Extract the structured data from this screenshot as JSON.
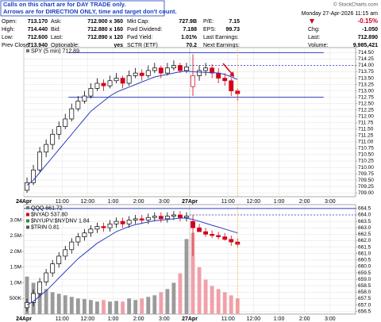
{
  "notice": [
    "Calls on this chart are for DAY TRADE only.",
    "Arrows are for DIRECTION ONLY, time and target don't count."
  ],
  "header": {
    "source": "© StockCharts.com",
    "timestamp": "Monday 27-Apr-2026 11:15 am"
  },
  "quote": {
    "columns": [
      [
        [
          "Open:",
          "713.170"
        ],
        [
          "High:",
          "714.440"
        ],
        [
          "Low:",
          "712.600"
        ],
        [
          "Prev Close:",
          "713.940"
        ]
      ],
      [
        [
          "Ask:",
          "712.900 x 360"
        ],
        [
          "Bid:",
          "712.880 x 160"
        ],
        [
          "Last:",
          "712.890 x 120"
        ],
        [
          "Optionable:",
          "yes"
        ]
      ],
      [
        [
          "Mkt Cap:",
          "727.9B"
        ],
        [
          "Fwd Dividend:",
          "7.188"
        ],
        [
          "Fwd Yield:",
          "1.01%"
        ],
        [
          "SCTR (ETF)",
          "70.2"
        ]
      ],
      [
        [
          "P/E:",
          "7.15"
        ],
        [
          "EPS:",
          "99.73"
        ],
        [
          "Last Earnings:"
        ],
        [
          "Next Earnings:"
        ]
      ]
    ]
  },
  "summary": {
    "change_pct": "-0.15%",
    "rows": [
      [
        "Chg:",
        "-1.050"
      ],
      [
        "Last:",
        "712.890"
      ],
      [
        "Volume:",
        "9,985,421"
      ]
    ]
  },
  "chart_data": [
    {
      "type": "candlestick",
      "title": "SPY (5 min) 712.89",
      "categories": [
        "24Apr",
        null,
        null,
        null,
        null,
        null,
        "11:00",
        null,
        null,
        null,
        "12:00",
        null,
        null,
        null,
        "1:00",
        null,
        null,
        null,
        "2:00",
        null,
        null,
        null,
        "3:00",
        null,
        null,
        null,
        "27Apr",
        null,
        null,
        null,
        null,
        null,
        "11:00",
        null,
        null,
        null,
        "12:00",
        null,
        null,
        null,
        "1:00",
        null,
        null,
        null,
        "2:00",
        null,
        null,
        null,
        "3:00",
        null,
        null,
        null
      ],
      "open": [
        709.1,
        709.4,
        709.9,
        710.6,
        710.9,
        711.3,
        711.6,
        711.9,
        712.3,
        712.6,
        712.8,
        713.1,
        713.3,
        713.2,
        713.4,
        713.5,
        713.3,
        713.6,
        713.7,
        713.6,
        713.8,
        713.9,
        713.7,
        713.9,
        714.0,
        713.8,
        713.17,
        713.6,
        713.8,
        713.9,
        713.7,
        713.5,
        713.4,
        713.0,
        null,
        null,
        null,
        null,
        null,
        null,
        null,
        null,
        null,
        null,
        null,
        null,
        null,
        null,
        null,
        null,
        null,
        null
      ],
      "high": [
        709.6,
        710.1,
        710.8,
        711.1,
        711.5,
        711.8,
        712.1,
        712.5,
        712.8,
        713.0,
        713.3,
        713.5,
        713.45,
        713.6,
        713.7,
        713.6,
        713.8,
        713.9,
        713.85,
        714.0,
        714.1,
        714.0,
        714.1,
        714.2,
        714.1,
        714.1,
        714.44,
        714.0,
        714.1,
        714.05,
        713.9,
        713.7,
        713.5,
        713.1,
        null,
        null,
        null,
        null,
        null,
        null,
        null,
        null,
        null,
        null,
        null,
        null,
        null,
        null,
        null,
        null,
        null,
        null
      ],
      "low": [
        709.0,
        709.3,
        709.8,
        710.4,
        710.7,
        711.1,
        711.5,
        711.8,
        712.2,
        712.5,
        712.7,
        713.0,
        713.0,
        713.1,
        713.3,
        713.1,
        713.2,
        713.5,
        713.4,
        713.5,
        713.7,
        713.5,
        713.6,
        713.8,
        713.7,
        713.7,
        712.8,
        713.4,
        713.6,
        713.5,
        713.3,
        713.2,
        712.8,
        712.6,
        null,
        null,
        null,
        null,
        null,
        null,
        null,
        null,
        null,
        null,
        null,
        null,
        null,
        null,
        null,
        null,
        null,
        null
      ],
      "close": [
        709.4,
        709.9,
        710.6,
        710.9,
        711.3,
        711.6,
        711.9,
        712.3,
        712.6,
        712.8,
        713.1,
        713.3,
        713.2,
        713.4,
        713.5,
        713.3,
        713.6,
        713.7,
        713.6,
        713.8,
        713.9,
        713.7,
        713.9,
        714.0,
        713.8,
        713.94,
        713.6,
        713.8,
        713.9,
        713.7,
        713.5,
        713.4,
        713.0,
        712.89,
        null,
        null,
        null,
        null,
        null,
        null,
        null,
        null,
        null,
        null,
        null,
        null,
        null,
        null,
        null,
        null,
        null,
        null
      ],
      "ma": [
        709.3,
        709.5,
        709.8,
        710.1,
        710.4,
        710.7,
        711.0,
        711.3,
        711.6,
        711.9,
        712.2,
        712.4,
        712.6,
        712.8,
        712.95,
        713.05,
        713.15,
        713.25,
        713.35,
        713.45,
        713.55,
        713.6,
        713.65,
        713.7,
        713.75,
        713.78,
        713.75,
        713.74,
        713.73,
        713.72,
        713.7,
        713.65,
        713.55,
        713.45,
        null,
        null,
        null,
        null,
        null,
        null,
        null,
        null,
        null,
        null,
        null,
        null,
        null,
        null,
        null,
        null,
        null,
        null
      ],
      "ma_color": "#2b3fbf",
      "up_color": "#000000",
      "down_color": "#d0021b",
      "ylim": [
        708.85,
        714.7
      ],
      "yticks": [
        {
          "value": 709,
          "label": "709.00"
        },
        {
          "value": 709.25,
          "label": "709.25"
        },
        {
          "value": 709.5,
          "label": "709.50"
        },
        {
          "value": 709.75,
          "label": "709.75"
        },
        {
          "value": 710,
          "label": "710.00"
        },
        {
          "value": 710.25,
          "label": "710.25"
        },
        {
          "value": 710.5,
          "label": "710.50"
        },
        {
          "value": 710.75,
          "label": "710.75"
        },
        {
          "value": 711,
          "label": "711.00"
        },
        {
          "value": 711.25,
          "label": "711.25"
        },
        {
          "value": 711.5,
          "label": "711.50"
        },
        {
          "value": 711.75,
          "label": "711.75"
        },
        {
          "value": 712,
          "label": "712.00"
        },
        {
          "value": 712.25,
          "label": "712.25"
        },
        {
          "value": 712.5,
          "label": "712.50"
        },
        {
          "value": 712.75,
          "label": "712.75"
        },
        {
          "value": 713,
          "label": "713.00"
        },
        {
          "value": 713.25,
          "label": "713.25"
        },
        {
          "value": 713.5,
          "label": "713.50"
        },
        {
          "value": 713.75,
          "label": "713.75"
        },
        {
          "value": 714,
          "label": "714.00"
        },
        {
          "value": 714.25,
          "label": "714.25"
        },
        {
          "value": 714.5,
          "label": "714.50"
        }
      ],
      "grid": true,
      "levels": [
        {
          "value": 714.5,
          "style": "solid"
        },
        {
          "value": 714.0,
          "style": "dashed"
        },
        {
          "value": 712.75,
          "style": "solid"
        }
      ],
      "level_color": "#2b3fbf"
    },
    {
      "type": "candlestick",
      "title": "QQQ 661.72",
      "indicators": [
        "$NYAD 537.80",
        "$NYUPV:$NYDNV 1.84",
        "$TRIN 0.81"
      ],
      "indicator_colors": [
        "#d0021b",
        "#2b8a3e",
        "#555555"
      ],
      "categories": [
        "24Apr",
        null,
        null,
        null,
        null,
        null,
        "11:00",
        null,
        null,
        null,
        "12:00",
        null,
        null,
        null,
        "1:00",
        null,
        null,
        null,
        "2:00",
        null,
        null,
        null,
        "3:00",
        null,
        null,
        null,
        "27Apr",
        null,
        null,
        null,
        null,
        null,
        "11:00",
        null,
        null,
        null,
        "12:00",
        null,
        null,
        null,
        "1:00",
        null,
        null,
        null,
        "2:00",
        null,
        null,
        null,
        "3:00",
        null,
        null,
        null
      ],
      "open": [
        656.8,
        657.2,
        657.9,
        658.8,
        659.5,
        660.2,
        660.8,
        661.3,
        661.9,
        662.3,
        662.6,
        662.9,
        663.1,
        663.0,
        663.3,
        663.5,
        663.3,
        663.6,
        663.7,
        663.6,
        663.8,
        663.9,
        663.7,
        663.9,
        664.0,
        663.8,
        663.5,
        663.0,
        662.7,
        662.5,
        662.4,
        662.3,
        662.1,
        661.9,
        null,
        null,
        null,
        null,
        null,
        null,
        null,
        null,
        null,
        null,
        null,
        null,
        null,
        null,
        null,
        null,
        null,
        null
      ],
      "high": [
        657.5,
        658.2,
        659.1,
        659.8,
        660.5,
        661.1,
        661.6,
        662.2,
        662.6,
        662.9,
        663.2,
        663.4,
        663.4,
        663.6,
        663.8,
        663.8,
        663.9,
        664.0,
        664.0,
        664.1,
        664.2,
        664.2,
        664.2,
        664.3,
        664.3,
        664.2,
        664.0,
        663.3,
        663.0,
        662.8,
        662.7,
        662.6,
        662.4,
        662.2,
        null,
        null,
        null,
        null,
        null,
        null,
        null,
        null,
        null,
        null,
        null,
        null,
        null,
        null,
        null,
        null,
        null,
        null
      ],
      "low": [
        656.5,
        656.9,
        657.6,
        658.5,
        659.2,
        659.9,
        660.5,
        661.0,
        661.6,
        662.0,
        662.3,
        662.6,
        662.7,
        662.7,
        663.0,
        663.0,
        663.0,
        663.3,
        663.3,
        663.3,
        663.5,
        663.4,
        663.4,
        663.6,
        663.5,
        663.5,
        660.8,
        662.7,
        662.3,
        662.2,
        662.1,
        662.0,
        661.6,
        661.5,
        null,
        null,
        null,
        null,
        null,
        null,
        null,
        null,
        null,
        null,
        null,
        null,
        null,
        null,
        null,
        null,
        null,
        null
      ],
      "close": [
        657.2,
        657.9,
        658.8,
        659.5,
        660.2,
        660.8,
        661.3,
        661.9,
        662.3,
        662.6,
        662.9,
        663.1,
        663.0,
        663.3,
        663.5,
        663.3,
        663.6,
        663.7,
        663.6,
        663.8,
        663.9,
        663.7,
        663.9,
        664.0,
        663.8,
        663.9,
        663.0,
        662.7,
        662.5,
        662.4,
        662.3,
        662.1,
        661.9,
        661.72,
        null,
        null,
        null,
        null,
        null,
        null,
        null,
        null,
        null,
        null,
        null,
        null,
        null,
        null,
        null,
        null,
        null,
        null
      ],
      "ma": [
        657.0,
        657.3,
        657.7,
        658.1,
        658.6,
        659.1,
        659.6,
        660.1,
        660.6,
        661.0,
        661.4,
        661.8,
        662.1,
        662.4,
        662.7,
        662.9,
        663.1,
        663.25,
        663.35,
        663.45,
        663.55,
        663.6,
        663.65,
        663.7,
        663.75,
        663.75,
        663.65,
        663.5,
        663.35,
        663.2,
        663.05,
        662.9,
        662.75,
        662.6,
        null,
        null,
        null,
        null,
        null,
        null,
        null,
        null,
        null,
        null,
        null,
        null,
        null,
        null,
        null,
        null,
        null,
        null
      ],
      "ma_color": "#2b3fbf",
      "up_color": "#000000",
      "down_color": "#d0021b",
      "ylim": [
        656.3,
        664.8
      ],
      "yticks": [
        656.5,
        {
          "value": 657,
          "label": "657.0"
        },
        657.5,
        {
          "value": 658,
          "label": "658.0"
        },
        658.5,
        {
          "value": 659,
          "label": "659.0"
        },
        659.5,
        {
          "value": 660,
          "label": "660.0"
        },
        660.5,
        {
          "value": 661,
          "label": "661.0"
        },
        661.5,
        {
          "value": 662,
          "label": "662.0"
        },
        662.5,
        {
          "value": 663,
          "label": "663.0"
        },
        663.5,
        {
          "value": 664,
          "label": "664.0"
        },
        664.5
      ],
      "grid": true,
      "levels": [
        {
          "value": 664.5,
          "style": "solid"
        },
        {
          "value": 664.0,
          "style": "dashed"
        }
      ],
      "level_color": "#2b3fbf",
      "volume": {
        "values": [
          1200000,
          1000000,
          900000,
          800000,
          700000,
          650000,
          600000,
          550000,
          500000,
          480000,
          450000,
          400000,
          450000,
          400000,
          420000,
          400000,
          500000,
          450000,
          500000,
          550000,
          600000,
          700000,
          800000,
          1000000,
          1300000,
          2400000,
          2600000,
          1500000,
          1100000,
          900000,
          800000,
          700000,
          600000,
          500000,
          null,
          null,
          null,
          null,
          null,
          null,
          null,
          null,
          null,
          null,
          null,
          null,
          null,
          null,
          null,
          null,
          null,
          null
        ],
        "up_color": "#9a9a9a",
        "down_color": "#f0a0aa",
        "ylim": [
          0,
          3500000
        ],
        "yticks": [
          {
            "value": 500000,
            "label": "500K"
          },
          {
            "value": 1000000,
            "label": "1.0M"
          },
          {
            "value": 1500000,
            "label": "1.5M"
          },
          {
            "value": 2000000,
            "label": "2.0M"
          },
          {
            "value": 2500000,
            "label": "2.5M"
          },
          {
            "value": 3000000,
            "label": "3.0M"
          }
        ]
      }
    }
  ]
}
